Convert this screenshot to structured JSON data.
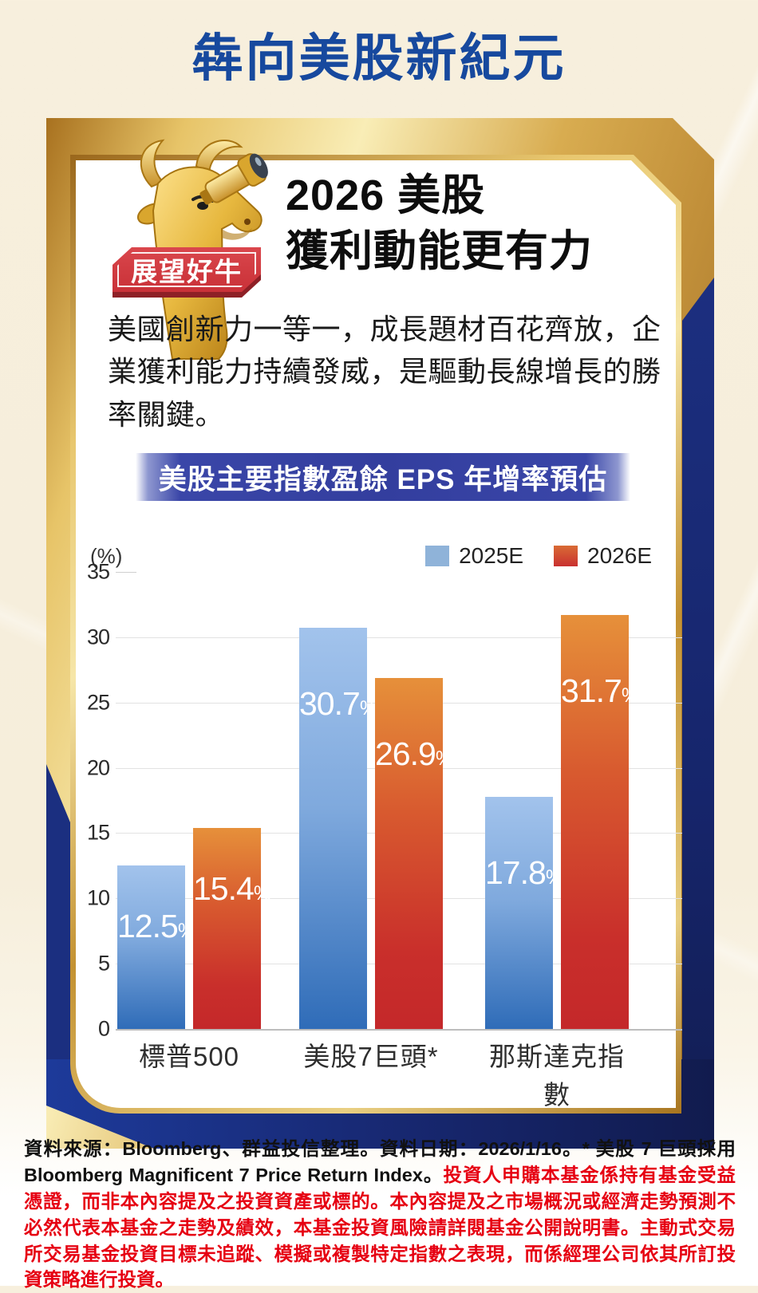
{
  "page": {
    "title": "犇向美股新紀元"
  },
  "card": {
    "badge": "展望好牛",
    "mascot": "golden-bull-with-telescope",
    "heading_line1": "2026 美股",
    "heading_line2": "獲利動能更有力",
    "body": "美國創新力一等一，成長題材百花齊放，企業獲利能力持續發威，是驅動長線增長的勝率關鍵。"
  },
  "chart_data": {
    "type": "bar",
    "title": "美股主要指數盈餘 EPS 年增率預估",
    "unit_label": "(%)",
    "categories": [
      "標普500",
      "美股7巨頭*",
      "那斯達克指數"
    ],
    "series": [
      {
        "name": "2025E",
        "color": "#8fb3d9",
        "values": [
          12.5,
          30.7,
          17.8
        ]
      },
      {
        "name": "2026E",
        "color": "#c93030",
        "values": [
          15.4,
          26.9,
          31.7
        ]
      }
    ],
    "value_suffix": "%",
    "ylim": [
      0,
      35
    ],
    "ytick_step": 5,
    "grid": true,
    "legend_position": "top-right"
  },
  "footer": {
    "source_text": "資料來源：Bloomberg、群益投信整理。資料日期：2026/1/16。* 美股 7 巨頭採用 Bloomberg Magnificent 7 Price Return Index。",
    "disclaimer_text": "投資人申購本基金係持有基金受益憑證，而非本內容提及之投資資產或標的。本內容提及之市場概況或經濟走勢預測不必然代表本基金之走勢及績效，本基金投資風險請詳閱基金公開說明書。主動式交易所交易基金投資目標未追蹤、模擬或複製特定指數之表現，而係經理公司依其所訂投資策略進行投資。"
  },
  "colors": {
    "title_blue": "#17499e",
    "navy_panel": "#17276f",
    "gold_light": "#f9edb6",
    "gold_dark": "#8a5c1a",
    "badge_red": "#d03a40",
    "banner_blue": "#333e9e",
    "bar_blue_top": "#a2c3ec",
    "bar_blue_bottom": "#2f6cb8",
    "bar_red_top": "#e6903a",
    "bar_red_bottom": "#c4282a",
    "disclaimer_red": "#e60012",
    "background_cream": "#f7efdd"
  }
}
